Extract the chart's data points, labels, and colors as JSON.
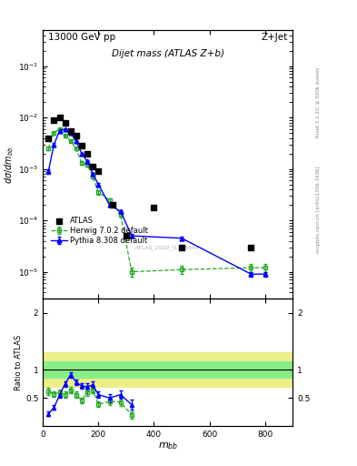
{
  "title_top": "13000 GeV pp",
  "title_right": "Z+Jet",
  "plot_title": "Dijet mass (ATLAS Z+b)",
  "xlabel": "m_{bb}",
  "ylabel_main": "dσ/dm_{bb}",
  "ylabel_ratio": "Ratio to ATLAS",
  "watermark": "ATLAS_2020_I1788444",
  "right_label": "mcplots.cern.ch [arXiv:1306.3436]",
  "right_label2": "Rivet 3.1.10; ≥ 500k events",
  "atlas_x": [
    20,
    40,
    60,
    80,
    100,
    120,
    140,
    160,
    180,
    200,
    250,
    300,
    400,
    500,
    750
  ],
  "atlas_y": [
    0.004,
    0.009,
    0.01,
    0.008,
    0.0055,
    0.0045,
    0.0028,
    0.002,
    0.0011,
    0.0009,
    0.0002,
    5e-05,
    0.00018,
    3e-05,
    3e-05
  ],
  "herwig_x": [
    20,
    40,
    60,
    80,
    100,
    120,
    140,
    160,
    180,
    200,
    240,
    280,
    320,
    500,
    750,
    800
  ],
  "herwig_y": [
    0.0025,
    0.005,
    0.006,
    0.0045,
    0.0035,
    0.0025,
    0.0013,
    0.0012,
    0.0007,
    0.00035,
    0.00025,
    0.00013,
    1e-05,
    1.1e-05,
    1.2e-05,
    1.2e-05
  ],
  "herwig_yerr": [
    0.0002,
    0.0003,
    0.0003,
    0.0002,
    0.0002,
    0.00015,
    0.0001,
    8e-05,
    5e-05,
    3e-05,
    2e-05,
    1e-05,
    2e-06,
    2e-06,
    2e-06,
    2e-06
  ],
  "pythia_x": [
    20,
    40,
    60,
    80,
    100,
    120,
    140,
    160,
    180,
    200,
    240,
    280,
    320,
    500,
    750,
    800
  ],
  "pythia_y": [
    0.0009,
    0.003,
    0.0055,
    0.006,
    0.005,
    0.0035,
    0.002,
    0.0014,
    0.0008,
    0.0005,
    0.0002,
    0.00015,
    5e-05,
    4.5e-05,
    9e-06,
    9e-06
  ],
  "pythia_yerr": [
    0.0001,
    0.0002,
    0.0002,
    0.0002,
    0.00015,
    0.00012,
    8e-05,
    6e-05,
    4e-05,
    3e-05,
    1.5e-05,
    1e-05,
    4e-06,
    4e-06,
    1e-06,
    1e-06
  ],
  "ratio_herwig_x": [
    20,
    40,
    60,
    80,
    100,
    120,
    140,
    160,
    180,
    200,
    240,
    280,
    320
  ],
  "ratio_herwig_y": [
    0.62,
    0.57,
    0.6,
    0.56,
    0.64,
    0.56,
    0.46,
    0.6,
    0.64,
    0.39,
    0.44,
    0.43,
    0.2
  ],
  "ratio_herwig_yerr": [
    0.06,
    0.05,
    0.05,
    0.05,
    0.05,
    0.05,
    0.05,
    0.06,
    0.06,
    0.05,
    0.06,
    0.07,
    0.06
  ],
  "ratio_pythia_x": [
    20,
    40,
    60,
    80,
    100,
    120,
    140,
    160,
    180,
    200,
    240,
    280,
    320
  ],
  "ratio_pythia_y": [
    0.22,
    0.33,
    0.55,
    0.75,
    0.91,
    0.78,
    0.71,
    0.7,
    0.73,
    0.56,
    0.5,
    0.56,
    0.38
  ],
  "ratio_pythia_yerr": [
    0.04,
    0.04,
    0.04,
    0.05,
    0.05,
    0.05,
    0.05,
    0.06,
    0.06,
    0.06,
    0.07,
    0.07,
    0.09
  ],
  "ylim_main": [
    3e-06,
    0.5
  ],
  "ylim_ratio": [
    0.0,
    2.25
  ],
  "xlim": [
    0,
    900
  ],
  "atlas_color": "black",
  "herwig_color": "#22aa22",
  "pythia_color": "blue",
  "band_green_color": "#88ee88",
  "band_yellow_color": "#eeee88"
}
